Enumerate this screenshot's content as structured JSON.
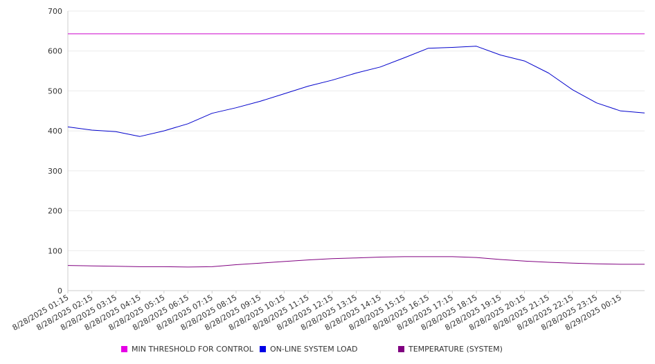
{
  "chart_data": {
    "type": "line",
    "title": "",
    "xlabel": "",
    "ylabel": "",
    "ylim": [
      0,
      700
    ],
    "yticks": [
      "0",
      "100",
      "200",
      "300",
      "400",
      "500",
      "600",
      "700"
    ],
    "x_tick_labels": [
      "8/28/2025 01:15",
      "8/28/2025 02:15",
      "8/28/2025 03:15",
      "8/28/2025 04:15",
      "8/28/2025 05:15",
      "8/28/2025 06:15",
      "8/28/2025 07:15",
      "8/28/2025 08:15",
      "8/28/2025 09:15",
      "8/28/2025 10:15",
      "8/28/2025 11:15",
      "8/28/2025 12:15",
      "8/28/2025 13:15",
      "8/28/2025 14:15",
      "8/28/2025 15:15",
      "8/28/2025 16:15",
      "8/28/2025 17:15",
      "8/28/2025 18:15",
      "8/28/2025 19:15",
      "8/28/2025 20:15",
      "8/28/2025 21:15",
      "8/28/2025 22:15",
      "8/28/2025 23:15",
      "8/29/2025 00:15"
    ],
    "grid": true,
    "legend_position": "bottom",
    "series": [
      {
        "name": "MIN THRESHOLD FOR CONTROL",
        "color": "#cc00cc",
        "values": [
          643,
          643,
          643,
          643,
          643,
          643,
          643,
          643,
          643,
          643,
          643,
          643,
          643,
          643,
          643,
          643,
          643,
          643,
          643,
          643,
          643,
          643,
          643,
          643,
          643
        ]
      },
      {
        "name": "ON-LINE SYSTEM LOAD",
        "color": "#0000cc",
        "values": [
          410,
          402,
          398,
          386,
          400,
          418,
          444,
          458,
          474,
          493,
          512,
          527,
          545,
          560,
          583,
          607,
          609,
          612,
          590,
          575,
          545,
          503,
          470,
          450,
          445
        ]
      },
      {
        "name": "TEMPERATURE (SYSTEM)",
        "color": "#800080",
        "values": [
          63,
          62,
          61,
          60,
          60,
          59,
          60,
          65,
          69,
          73,
          77,
          80,
          82,
          84,
          85,
          85,
          85,
          83,
          78,
          74,
          71,
          69,
          67,
          66,
          66
        ]
      }
    ]
  }
}
